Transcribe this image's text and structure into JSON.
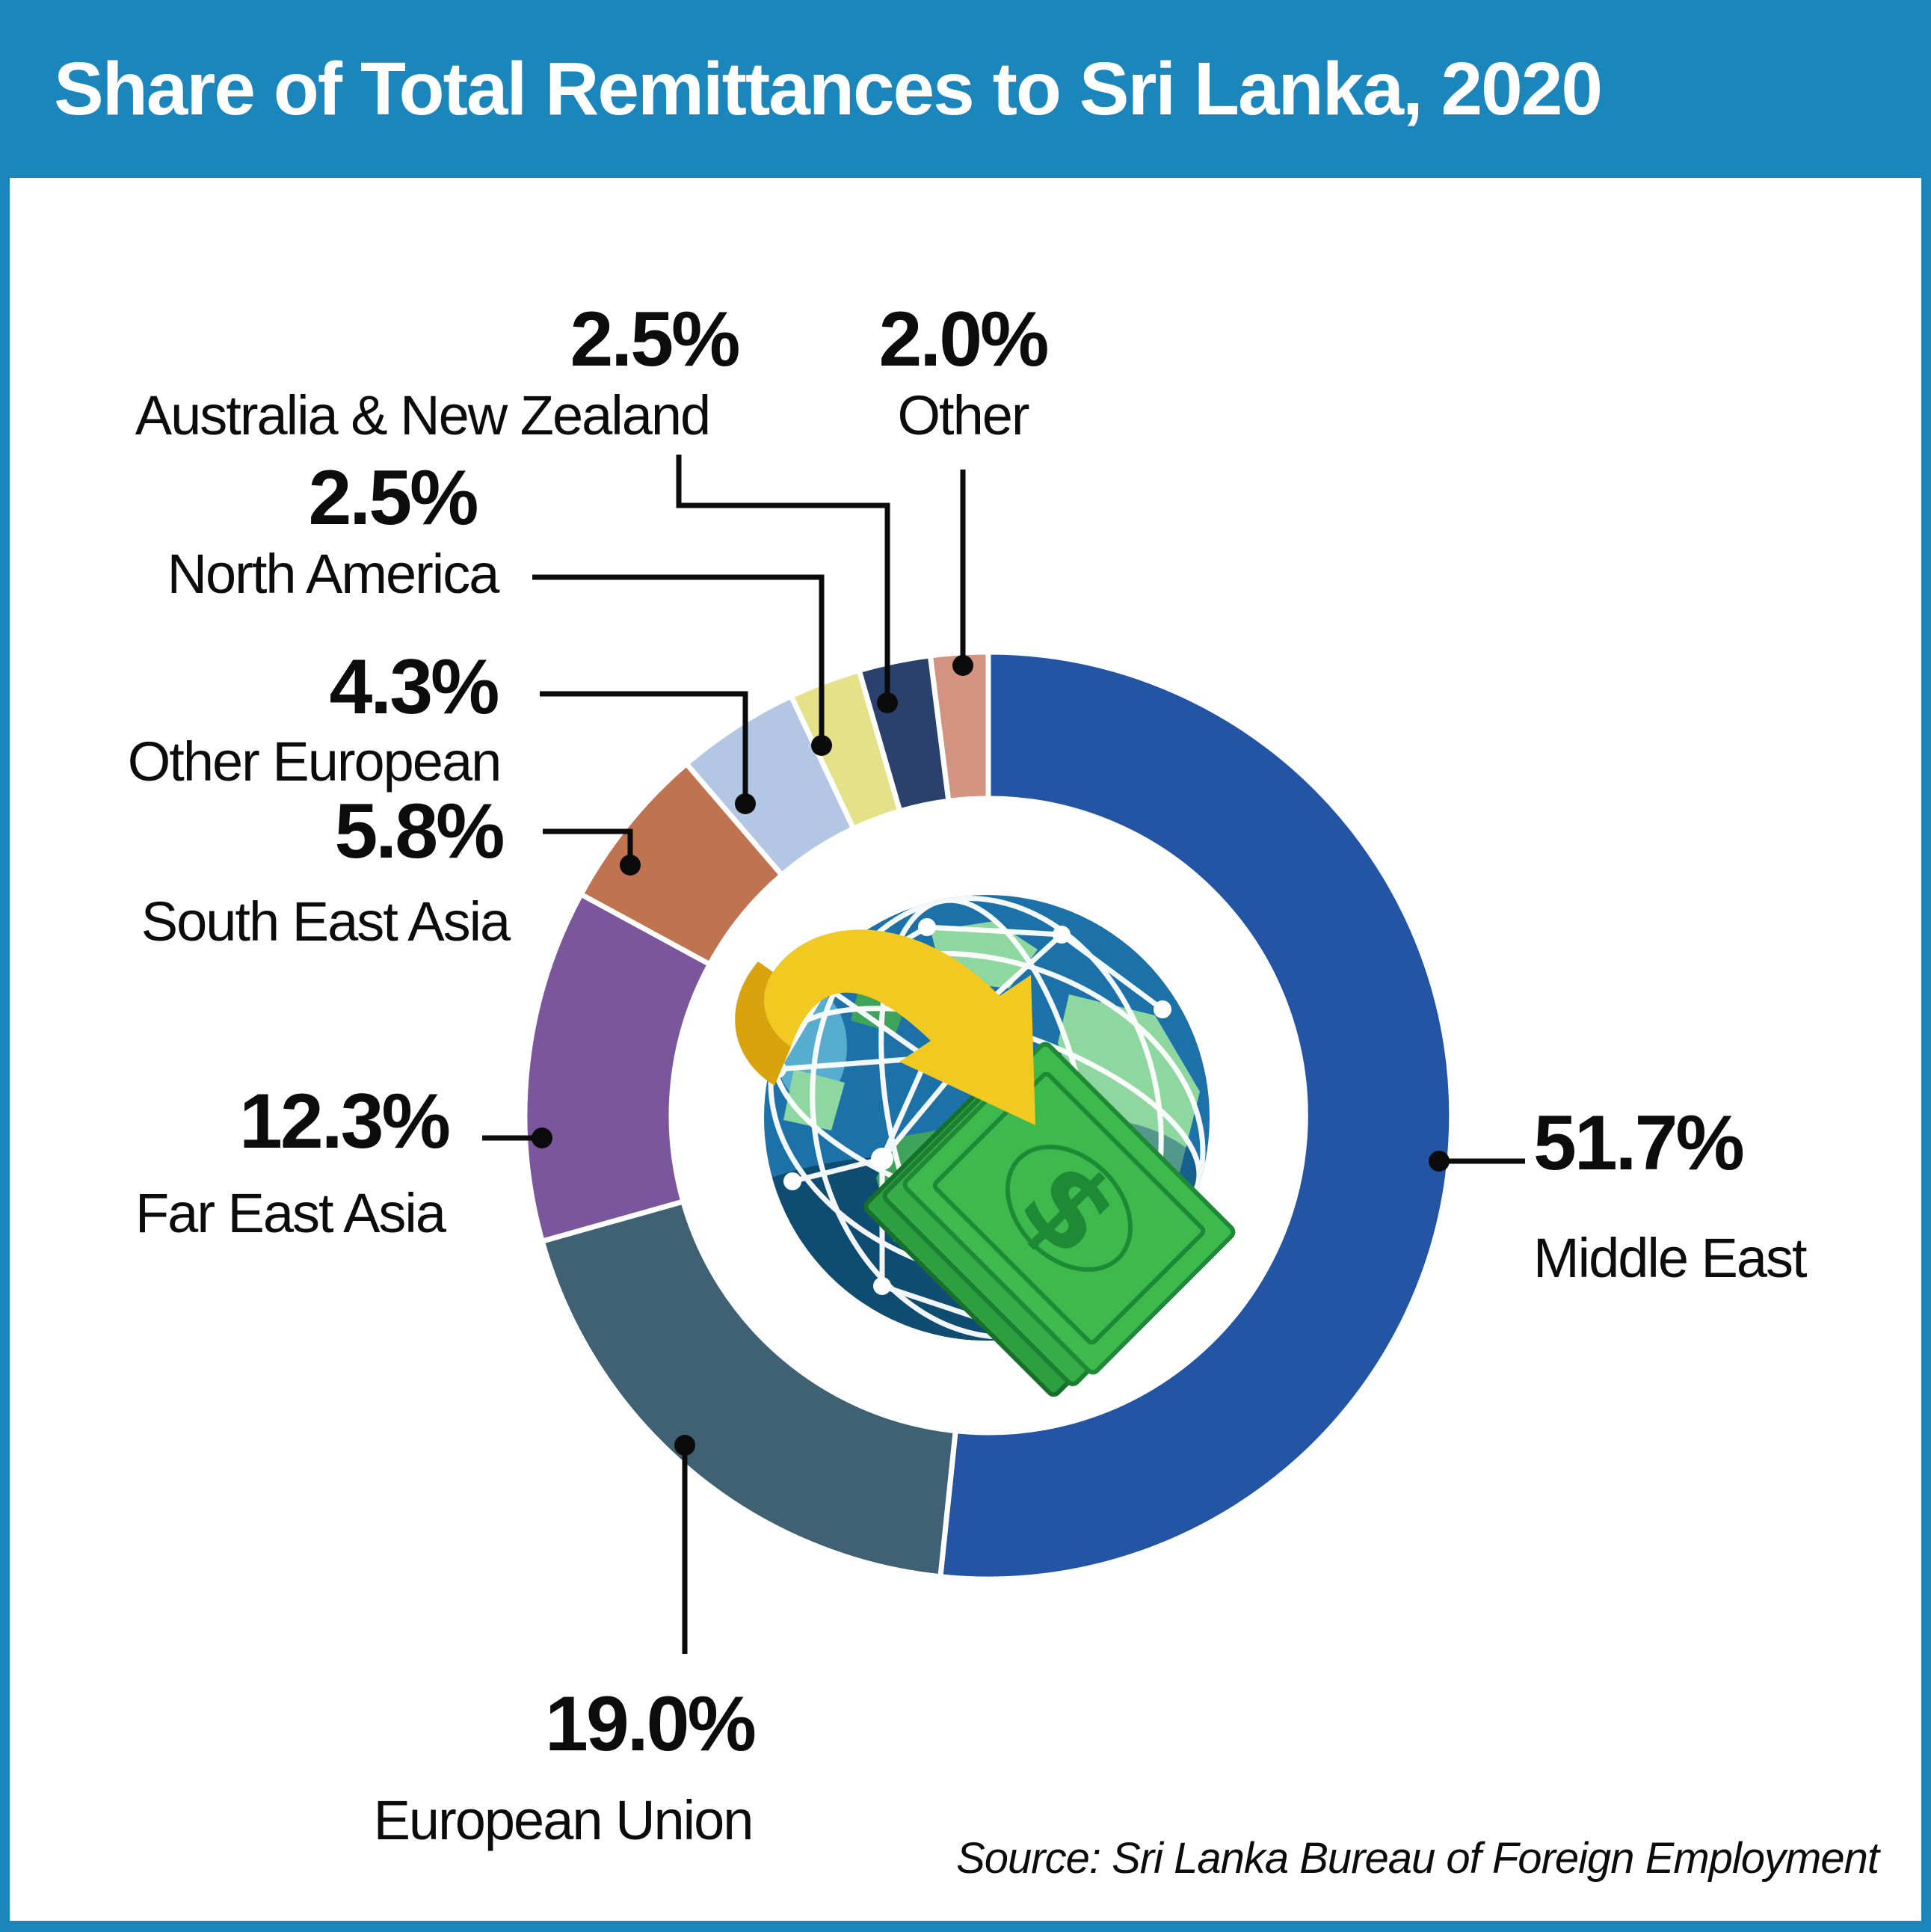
{
  "chart_data": {
    "type": "pie",
    "variant": "donut",
    "title": "Share of Total Remittances to Sri Lanka, 2020",
    "unit": "percent",
    "direction": "clockwise",
    "start_angle_deg": 0,
    "legend_position": "callout-labels",
    "center_illustration": "globe-with-money-transfer-arrow",
    "segments": [
      {
        "label": "Middle East",
        "value": 51.7,
        "pct_label": "51.7%",
        "color": "#2355A4"
      },
      {
        "label": "European Union",
        "value": 19.0,
        "pct_label": "19.0%",
        "color": "#3F6173"
      },
      {
        "label": "Far East Asia",
        "value": 12.3,
        "pct_label": "12.3%",
        "color": "#7B569D"
      },
      {
        "label": "South East Asia",
        "value": 5.8,
        "pct_label": "5.8%",
        "color": "#BF7350"
      },
      {
        "label": "Other European",
        "value": 4.3,
        "pct_label": "4.3%",
        "color": "#B3C6E4"
      },
      {
        "label": "North America",
        "value": 2.5,
        "pct_label": "2.5%",
        "color": "#2A416D",
        "color_note": "navy used for Australia & NZ in ring; North America uses pale yellow",
        "color_actual": "#E4E189"
      },
      {
        "label": "Australia & New Zealand",
        "value": 2.5,
        "pct_label": "2.5%",
        "color": "#E4E189",
        "color_actual": "#2A416D"
      },
      {
        "label": "Other",
        "value": 2.0,
        "pct_label": "2.0%",
        "color": "#D29380"
      }
    ],
    "ring_colors_clockwise_from_top": [
      "#2355A4",
      "#3F6173",
      "#7B569D",
      "#BF7350",
      "#B3C6E4",
      "#E4E189",
      "#2A416D",
      "#D29380"
    ],
    "source": "Source: Sri Lanka Bureau of Foreign Employment"
  },
  "colors": {
    "frame_and_titlebar": "#1A86BC",
    "title_text": "#ffffff",
    "label_text": "#0c0c0c",
    "leader_line": "#0b0b0b",
    "segment_separator": "#ffffff"
  }
}
